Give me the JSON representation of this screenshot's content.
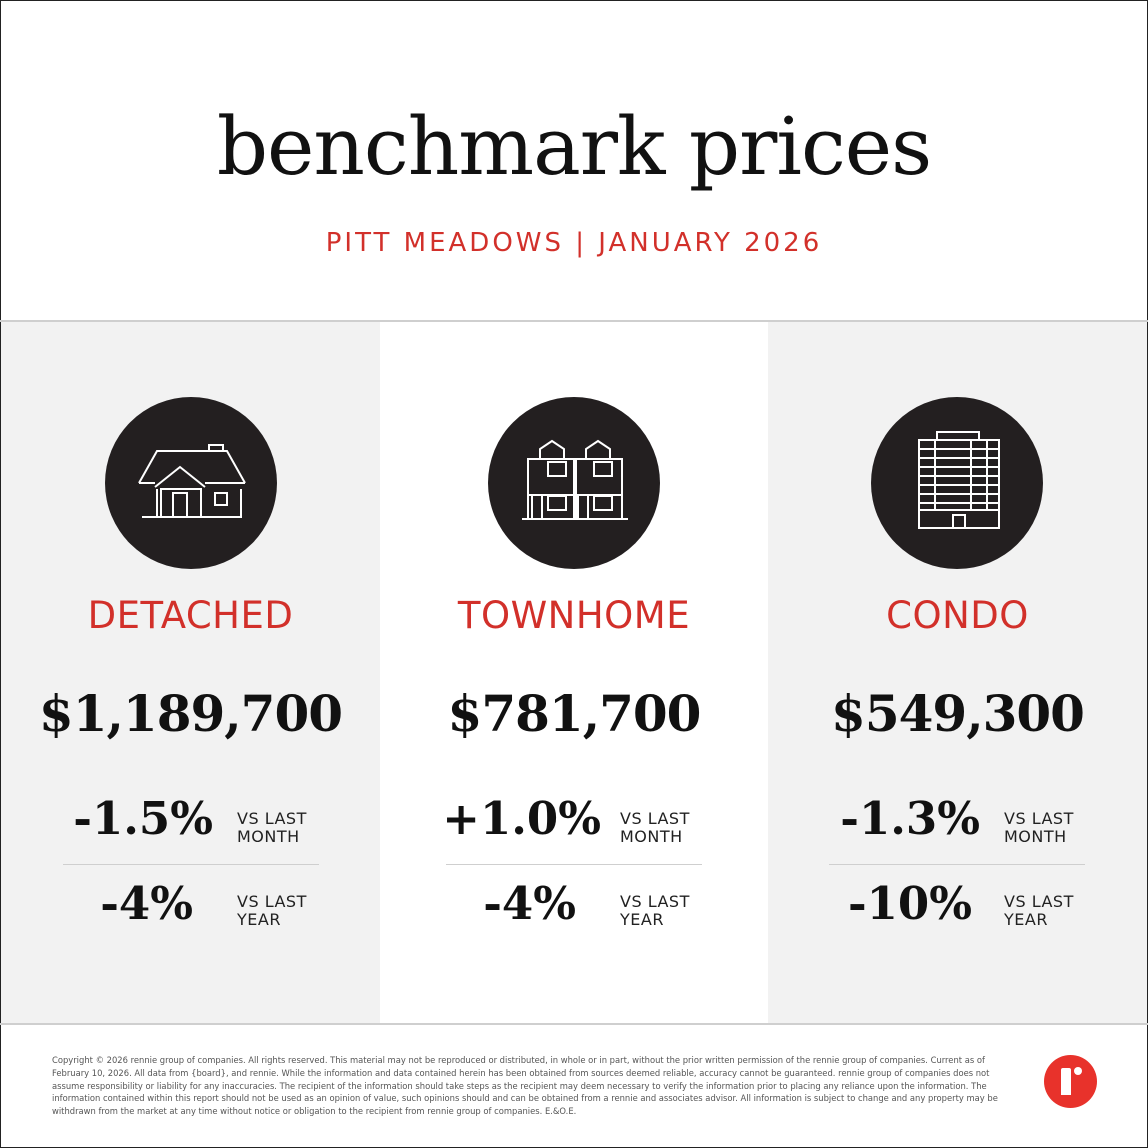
{
  "header": {
    "title": "benchmark prices",
    "subtitle": "PITT MEADOWS | JANUARY 2026"
  },
  "colors": {
    "accent": "#d2302a",
    "icon_circle": "#231f20",
    "grey_column": "#f2f2f2",
    "logo": "#e8322b"
  },
  "columns": [
    {
      "icon": "detached-house-icon",
      "type": "DETACHED",
      "price": "$1,189,700",
      "month_change": "-1.5%",
      "month_label_1": "VS LAST",
      "month_label_2": "MONTH",
      "year_change": "-4%",
      "year_label_1": "VS LAST",
      "year_label_2": "YEAR"
    },
    {
      "icon": "townhome-icon",
      "type": "TOWNHOME",
      "price": "$781,700",
      "month_change": "+1.0%",
      "month_label_1": "VS LAST",
      "month_label_2": "MONTH",
      "year_change": "-4%",
      "year_label_1": "VS LAST",
      "year_label_2": "YEAR"
    },
    {
      "icon": "condo-building-icon",
      "type": "CONDO",
      "price": "$549,300",
      "month_change": "-1.3%",
      "month_label_1": "VS LAST",
      "month_label_2": "MONTH",
      "year_change": "-10%",
      "year_label_1": "VS LAST",
      "year_label_2": "YEAR"
    }
  ],
  "footer": {
    "disclaimer": "Copyright © 2026 rennie group of companies. All rights reserved. This material may not be reproduced or distributed, in whole or in part, without the prior written permission of the rennie group of companies. Current as of February 10, 2026. All data from {board}, and rennie. While the information and data contained herein has been obtained from sources deemed reliable, accuracy cannot be guaranteed. rennie group of companies does not assume responsibility or liability for any inaccuracies. The recipient of the information should take steps as the recipient may deem necessary to verify the information prior to placing any reliance upon the information. The information contained within this report should not be used as an opinion of value, such opinions should and can be obtained from a rennie and associates advisor. All information is subject to change and any property may be withdrawn from the market at any time without notice or obligation to the recipient from rennie group of companies. E.&O.E.",
    "logo": "rennie-logo"
  }
}
